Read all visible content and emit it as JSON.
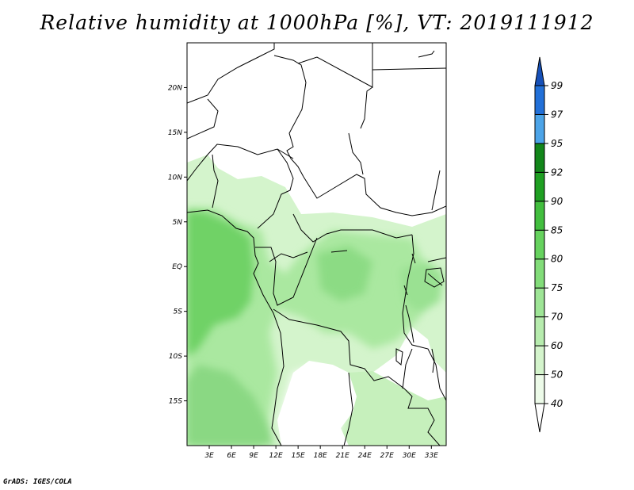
{
  "title": "Relative humidity at 1000hPa [%], VT: 2019111912",
  "credit": "GrADS: IGES/COLA",
  "map": {
    "lat_labels": [
      "20N",
      "15N",
      "10N",
      "5N",
      "EQ",
      "5S",
      "10S",
      "15S"
    ],
    "lon_labels": [
      "3E",
      "6E",
      "9E",
      "12E",
      "15E",
      "18E",
      "21E",
      "24E",
      "27E",
      "30E",
      "33E"
    ],
    "lon_range": [
      0,
      35
    ],
    "lat_range": [
      -20,
      25
    ]
  },
  "colorbar": {
    "levels": [
      "40",
      "50",
      "60",
      "70",
      "75",
      "80",
      "85",
      "90",
      "92",
      "95",
      "97",
      "99"
    ],
    "colors": [
      "#ffffff",
      "#edfbe9",
      "#d4f4cc",
      "#b7ecae",
      "#9ee596",
      "#82dc79",
      "#66d25e",
      "#42be3e",
      "#1f9f22",
      "#12861a",
      "#4ca4e8",
      "#2270d8",
      "#1650b8"
    ]
  }
}
